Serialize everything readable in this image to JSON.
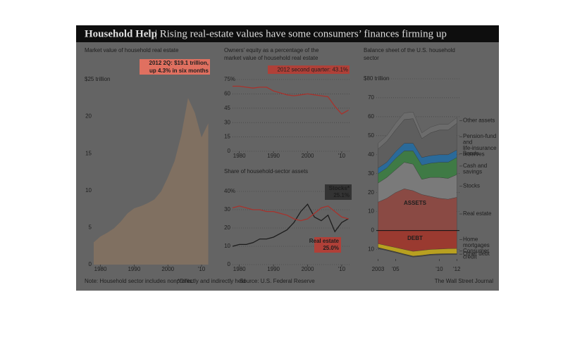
{
  "header": {
    "title": "Household Help",
    "subtitle": "| Rising real-estate values have some consumers’ finances firming up"
  },
  "chart_data": [
    {
      "type": "area",
      "title": "Market value of household real estate",
      "color": "#8c7560",
      "x": [
        1978,
        1980,
        1982,
        1984,
        1986,
        1988,
        1990,
        1992,
        1994,
        1996,
        1998,
        2000,
        2002,
        2004,
        2006,
        2008,
        2010,
        2012
      ],
      "values": [
        3,
        3.8,
        4.3,
        4.9,
        5.8,
        6.9,
        7.6,
        7.9,
        8.3,
        8.8,
        9.9,
        11.8,
        14,
        17.5,
        22.5,
        20.5,
        17.2,
        19.1
      ],
      "xlim": [
        1978,
        2012.5
      ],
      "xticks": [
        1980,
        1990,
        2000,
        {
          "value": 2010,
          "label": "'10"
        }
      ],
      "ylim": [
        0,
        25
      ],
      "yticks": [
        0,
        5,
        10,
        15,
        20,
        {
          "value": 25,
          "label": "$25 trillion"
        }
      ],
      "grid": false,
      "annotation": [
        "2012 2Q: $19.1 trillion,",
        "up 4.3% in six months"
      ]
    },
    {
      "type": "line",
      "title": "Owners’ equity as a percentage of the market value of household real estate",
      "color": "#a8322c",
      "x": [
        1978,
        1980,
        1982,
        1984,
        1986,
        1988,
        1990,
        1992,
        1994,
        1996,
        1998,
        2000,
        2002,
        2004,
        2006,
        2008,
        2010,
        2012
      ],
      "values": [
        68,
        68,
        67,
        66,
        67,
        67,
        63,
        61,
        59,
        58,
        59,
        60,
        59,
        58,
        57,
        47,
        39,
        43.1
      ],
      "xlim": [
        1978,
        2012.5
      ],
      "xticks": [
        1980,
        1990,
        2000,
        {
          "value": 2010,
          "label": "'10"
        }
      ],
      "ylim": [
        0,
        75
      ],
      "yticks": [
        0,
        15,
        30,
        45,
        60,
        {
          "value": 75,
          "label": "75%"
        }
      ],
      "grid": true,
      "annotation": [
        "2012 second quarter: 43.1%"
      ]
    },
    {
      "type": "line",
      "title": "Share of household-sector assets",
      "x": [
        1978,
        1980,
        1982,
        1984,
        1986,
        1988,
        1990,
        1992,
        1994,
        1996,
        1998,
        2000,
        2002,
        2004,
        2006,
        2008,
        2010,
        2012
      ],
      "series": [
        {
          "name": "Stocks*",
          "end_label": "25.1%",
          "color": "#1c1c1c",
          "values": [
            10,
            11,
            11,
            12,
            14,
            14,
            15,
            17,
            19,
            23,
            29,
            33,
            26,
            24,
            27,
            18,
            23,
            25.1
          ]
        },
        {
          "name": "Real estate",
          "end_label": "25.0%",
          "color": "#a8322c",
          "values": [
            31,
            32,
            31,
            30,
            30,
            29,
            29,
            28,
            27,
            25,
            24,
            25,
            28,
            31,
            32,
            29,
            26,
            25.0
          ]
        }
      ],
      "xlim": [
        1978,
        2012.5
      ],
      "xticks": [
        1980,
        1990,
        2000,
        {
          "value": 2010,
          "label": "'10"
        }
      ],
      "ylim": [
        0,
        40
      ],
      "yticks": [
        0,
        10,
        20,
        30,
        {
          "value": 40,
          "label": "40%"
        }
      ],
      "grid": true
    },
    {
      "type": "stacked-area",
      "title": "Balance sheet of the U.S. household sector",
      "x": [
        2003,
        2004,
        2005,
        2006,
        2007,
        2008,
        2009,
        2010,
        2011,
        2012
      ],
      "series": [
        {
          "name": "Real estate",
          "color": "#8a4a44",
          "values": [
            15,
            17,
            20,
            22,
            21,
            19,
            18,
            17,
            16.5,
            17.5
          ]
        },
        {
          "name": "Stocks",
          "color": "#7a7a7a",
          "values": [
            10,
            11,
            12,
            14,
            14,
            8,
            10,
            11,
            11,
            12
          ]
        },
        {
          "name": "Cash and savings",
          "color": "#3f7a45",
          "values": [
            5,
            5,
            6,
            6,
            7,
            7.5,
            7.5,
            8,
            8.5,
            9
          ]
        },
        {
          "name": "Bonds",
          "color": "#2a6a9a",
          "values": [
            3,
            3,
            3.5,
            4,
            4,
            4,
            4,
            4,
            4,
            4
          ]
        },
        {
          "name": "Pension-fund and life-insurance reserves",
          "color": "#5e5e5e",
          "values": [
            10,
            11,
            11.5,
            12.5,
            13,
            10,
            12,
            13,
            13,
            14
          ]
        },
        {
          "name": "Other assets",
          "color": "#6c6c6c",
          "values": [
            3,
            3,
            3.5,
            3.5,
            3.5,
            3,
            3,
            3,
            3,
            3
          ]
        },
        {
          "name": "Home mortgages",
          "color": "#9a3a30",
          "values": [
            -7,
            -8,
            -9,
            -10,
            -11,
            -10.5,
            -10,
            -9.8,
            -9.6,
            -9.5
          ]
        },
        {
          "name": "Consumer credit",
          "color": "#b8a020",
          "values": [
            -2,
            -2.1,
            -2.2,
            -2.4,
            -2.5,
            -2.6,
            -2.5,
            -2.5,
            -2.6,
            -2.7
          ]
        },
        {
          "name": "Other debt",
          "color": "#444444",
          "values": [
            -0.5,
            -0.5,
            -0.5,
            -0.5,
            -0.5,
            -0.5,
            -0.5,
            -0.5,
            -0.5,
            -0.5
          ]
        }
      ],
      "xlim": [
        2002.8,
        2012.3
      ],
      "xticks": [
        2003,
        {
          "value": 2005,
          "label": "'05"
        },
        {
          "value": 2010,
          "label": "'10"
        },
        {
          "value": 2012,
          "label": "'12"
        }
      ],
      "ylim": [
        -15,
        80
      ],
      "yticks": [
        {
          "value": -10,
          "label": "10"
        },
        0,
        10,
        20,
        30,
        40,
        50,
        60,
        70,
        {
          "value": 80,
          "label": "$80 trillion"
        }
      ],
      "grid": true,
      "labels": [
        "ASSETS",
        "DEBT"
      ]
    }
  ],
  "footer": {
    "note": "Note: Household sector includes nonprofits.",
    "footnote": "*Directly and indirectly held",
    "source": "Source: U.S. Federal Reserve",
    "credit": "The Wall Street Journal"
  }
}
